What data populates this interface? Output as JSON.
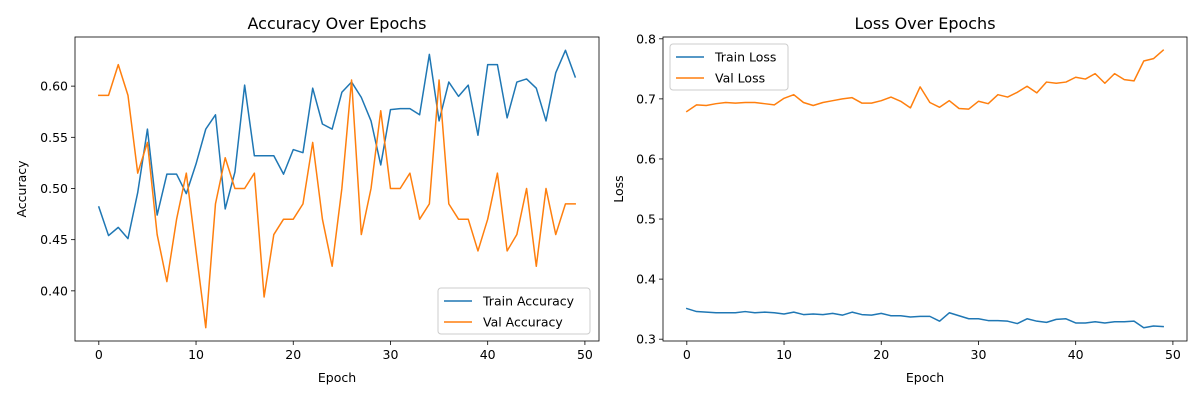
{
  "colors": {
    "train": "#1f77b4",
    "val": "#ff7f0e"
  },
  "chart_data": [
    {
      "type": "line",
      "title": "Accuracy Over Epochs",
      "xlabel": "Epoch",
      "ylabel": "Accuracy",
      "xlim": [
        -2.45,
        51.45
      ],
      "ylim": [
        0.351,
        0.648
      ],
      "xticks": [
        0,
        10,
        20,
        30,
        40,
        50
      ],
      "yticks": [
        0.4,
        0.45,
        0.5,
        0.55,
        0.6
      ],
      "ytick_labels": [
        "0.40",
        "0.45",
        "0.50",
        "0.55",
        "0.60"
      ],
      "legend_position": "lower right",
      "x": [
        0,
        1,
        2,
        3,
        4,
        5,
        6,
        7,
        8,
        9,
        10,
        11,
        12,
        13,
        14,
        15,
        16,
        17,
        18,
        19,
        20,
        21,
        22,
        23,
        24,
        25,
        26,
        27,
        28,
        29,
        30,
        31,
        32,
        33,
        34,
        35,
        36,
        37,
        38,
        39,
        40,
        41,
        42,
        43,
        44,
        45,
        46,
        47,
        48,
        49
      ],
      "series": [
        {
          "name": "Train Accuracy",
          "color_key": "train",
          "values": [
            0.482,
            0.454,
            0.462,
            0.451,
            0.496,
            0.558,
            0.474,
            0.514,
            0.514,
            0.495,
            0.524,
            0.558,
            0.572,
            0.48,
            0.516,
            0.601,
            0.532,
            0.532,
            0.532,
            0.514,
            0.538,
            0.535,
            0.598,
            0.563,
            0.558,
            0.594,
            0.604,
            0.589,
            0.566,
            0.523,
            0.577,
            0.578,
            0.578,
            0.572,
            0.631,
            0.566,
            0.604,
            0.59,
            0.601,
            0.552,
            0.621,
            0.621,
            0.569,
            0.604,
            0.607,
            0.598,
            0.566,
            0.613,
            0.635,
            0.609
          ]
        },
        {
          "name": "Val Accuracy",
          "color_key": "val",
          "values": [
            0.591,
            0.591,
            0.621,
            0.591,
            0.515,
            0.545,
            0.455,
            0.409,
            0.47,
            0.515,
            0.439,
            0.364,
            0.485,
            0.53,
            0.5,
            0.5,
            0.515,
            0.394,
            0.455,
            0.47,
            0.47,
            0.485,
            0.545,
            0.47,
            0.424,
            0.5,
            0.606,
            0.455,
            0.5,
            0.576,
            0.5,
            0.5,
            0.515,
            0.47,
            0.485,
            0.606,
            0.485,
            0.47,
            0.47,
            0.439,
            0.47,
            0.515,
            0.439,
            0.455,
            0.5,
            0.424,
            0.5,
            0.455,
            0.485,
            0.485
          ]
        }
      ]
    },
    {
      "type": "line",
      "title": "Loss Over Epochs",
      "xlabel": "Epoch",
      "ylabel": "Loss",
      "xlim": [
        -2.45,
        51.45
      ],
      "ylim": [
        0.297,
        0.803
      ],
      "xticks": [
        0,
        10,
        20,
        30,
        40,
        50
      ],
      "yticks": [
        0.3,
        0.4,
        0.5,
        0.6,
        0.7,
        0.8
      ],
      "ytick_labels": [
        "0.3",
        "0.4",
        "0.5",
        "0.6",
        "0.7",
        "0.8"
      ],
      "legend_position": "upper left",
      "x": [
        0,
        1,
        2,
        3,
        4,
        5,
        6,
        7,
        8,
        9,
        10,
        11,
        12,
        13,
        14,
        15,
        16,
        17,
        18,
        19,
        20,
        21,
        22,
        23,
        24,
        25,
        26,
        27,
        28,
        29,
        30,
        31,
        32,
        33,
        34,
        35,
        36,
        37,
        38,
        39,
        40,
        41,
        42,
        43,
        44,
        45,
        46,
        47,
        48,
        49
      ],
      "series": [
        {
          "name": "Train Loss",
          "color_key": "train",
          "values": [
            0.351,
            0.346,
            0.345,
            0.344,
            0.344,
            0.344,
            0.346,
            0.344,
            0.345,
            0.344,
            0.342,
            0.345,
            0.341,
            0.342,
            0.341,
            0.343,
            0.34,
            0.345,
            0.341,
            0.34,
            0.343,
            0.339,
            0.339,
            0.337,
            0.338,
            0.338,
            0.33,
            0.344,
            0.339,
            0.334,
            0.334,
            0.331,
            0.331,
            0.33,
            0.326,
            0.334,
            0.33,
            0.328,
            0.333,
            0.334,
            0.327,
            0.327,
            0.329,
            0.327,
            0.329,
            0.329,
            0.33,
            0.319,
            0.322,
            0.321
          ]
        },
        {
          "name": "Val Loss",
          "color_key": "val",
          "values": [
            0.679,
            0.69,
            0.689,
            0.692,
            0.694,
            0.693,
            0.694,
            0.694,
            0.692,
            0.69,
            0.701,
            0.707,
            0.694,
            0.689,
            0.694,
            0.697,
            0.7,
            0.702,
            0.693,
            0.693,
            0.697,
            0.703,
            0.696,
            0.685,
            0.72,
            0.694,
            0.686,
            0.697,
            0.684,
            0.683,
            0.696,
            0.692,
            0.707,
            0.703,
            0.711,
            0.721,
            0.71,
            0.728,
            0.726,
            0.728,
            0.736,
            0.733,
            0.742,
            0.726,
            0.742,
            0.732,
            0.73,
            0.763,
            0.767,
            0.781
          ]
        }
      ]
    }
  ]
}
